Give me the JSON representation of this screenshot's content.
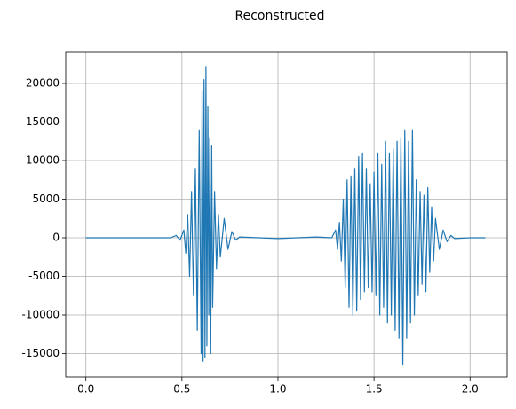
{
  "chart_data": {
    "type": "line",
    "title": "Reconstructed",
    "x": [
      0,
      0.2,
      0.44,
      0.47,
      0.49,
      0.51,
      0.52,
      0.53,
      0.54,
      0.55,
      0.56,
      0.57,
      0.58,
      0.59,
      0.6,
      0.605,
      0.61,
      0.615,
      0.62,
      0.625,
      0.63,
      0.635,
      0.64,
      0.645,
      0.65,
      0.655,
      0.66,
      0.67,
      0.68,
      0.69,
      0.7,
      0.72,
      0.74,
      0.76,
      0.78,
      0.8,
      1.0,
      1.2,
      1.28,
      1.3,
      1.31,
      1.32,
      1.33,
      1.34,
      1.35,
      1.36,
      1.37,
      1.38,
      1.39,
      1.4,
      1.41,
      1.42,
      1.43,
      1.44,
      1.45,
      1.46,
      1.47,
      1.48,
      1.49,
      1.5,
      1.51,
      1.52,
      1.53,
      1.54,
      1.55,
      1.56,
      1.57,
      1.58,
      1.59,
      1.6,
      1.61,
      1.62,
      1.63,
      1.64,
      1.65,
      1.66,
      1.67,
      1.68,
      1.69,
      1.7,
      1.71,
      1.72,
      1.73,
      1.74,
      1.75,
      1.76,
      1.77,
      1.78,
      1.79,
      1.8,
      1.81,
      1.82,
      1.84,
      1.86,
      1.88,
      1.9,
      1.92,
      2.0,
      2.08
    ],
    "values": [
      0,
      0,
      0,
      300,
      -300,
      1000,
      -2000,
      3000,
      -5000,
      6000,
      -7500,
      9000,
      -12000,
      14000,
      -15000,
      19000,
      -16000,
      20500,
      -15500,
      22200,
      -14000,
      17000,
      -10000,
      13000,
      -15000,
      12000,
      -9000,
      6000,
      -4000,
      3000,
      -2500,
      2500,
      -1500,
      800,
      -300,
      100,
      -100,
      100,
      0,
      1000,
      -1500,
      2000,
      -3000,
      5000,
      -6500,
      7500,
      -9000,
      8000,
      -10000,
      9000,
      -9500,
      10500,
      -8000,
      11000,
      -7000,
      9000,
      -6500,
      7000,
      -7000,
      8500,
      -7500,
      11000,
      -10000,
      9500,
      -9000,
      12500,
      -11000,
      11000,
      -10000,
      11500,
      -12000,
      12500,
      -13000,
      13000,
      -16400,
      14000,
      -13000,
      12500,
      -11000,
      14000,
      -10000,
      7500,
      -7500,
      6000,
      -6000,
      5500,
      -7000,
      6500,
      -4500,
      4000,
      -3000,
      2500,
      -1500,
      1000,
      -500,
      300,
      -100,
      0,
      0
    ],
    "color": "#1f77b4",
    "xlim": [
      -0.105,
      2.193
    ],
    "ylim": [
      -18046,
      24023
    ],
    "xticks": [
      {
        "value": 0,
        "label": "0.0"
      },
      {
        "value": 0.5,
        "label": "0.5"
      },
      {
        "value": 1,
        "label": "1.0"
      },
      {
        "value": 1.5,
        "label": "1.5"
      },
      {
        "value": 2,
        "label": "2.0"
      }
    ],
    "yticks": [
      -15000,
      -10000,
      -5000,
      0,
      5000,
      10000,
      15000,
      20000
    ],
    "grid": true
  }
}
